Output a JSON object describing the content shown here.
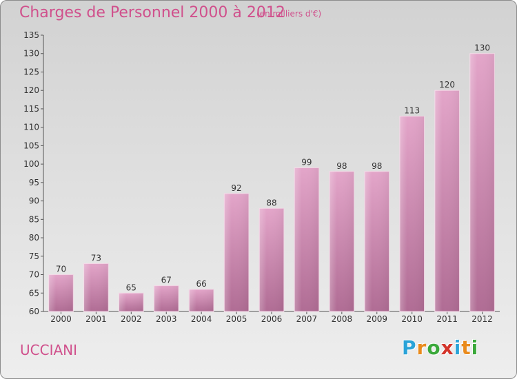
{
  "title": "Charges de Personnel 2000 à 2012",
  "subtitle": "(en milliers d'€)",
  "commune": "UCCIANI",
  "logo": {
    "letters": [
      "P",
      "r",
      "o",
      "x",
      "i",
      "t",
      "i"
    ],
    "colors": [
      "#2aa3d8",
      "#e98a1c",
      "#3aa83a",
      "#d3342a",
      "#2aa3d8",
      "#e98a1c",
      "#3aa83a"
    ]
  },
  "colors": {
    "bar_top": "#e3a5c9",
    "bar_bottom": "#b06c94",
    "title": "#d0508c"
  },
  "chart_data": {
    "type": "bar",
    "title": "Charges de Personnel 2000 à 2012",
    "subtitle": "(en milliers d'€)",
    "categories": [
      "2000",
      "2001",
      "2002",
      "2003",
      "2004",
      "2005",
      "2006",
      "2007",
      "2008",
      "2009",
      "2010",
      "2011",
      "2012"
    ],
    "values": [
      70,
      73,
      65,
      67,
      66,
      92,
      88,
      99,
      98,
      98,
      113,
      120,
      130
    ],
    "ylim": [
      60,
      135
    ],
    "yticks": [
      60,
      65,
      70,
      75,
      80,
      85,
      90,
      95,
      100,
      105,
      110,
      115,
      120,
      125,
      130,
      135
    ],
    "xlabel": "",
    "ylabel": "",
    "grid": false,
    "legend": "none"
  }
}
